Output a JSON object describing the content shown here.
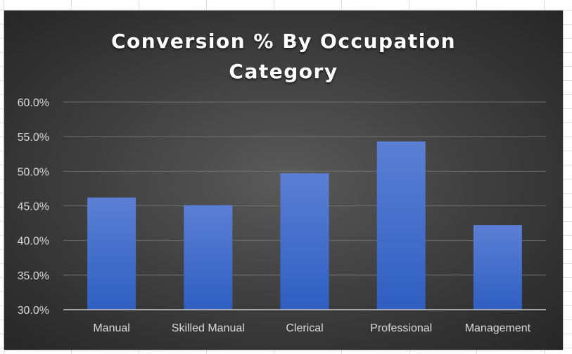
{
  "chart_data": {
    "type": "bar",
    "title": "Conversion % By Occupation Category",
    "title_lines": [
      "Conversion % By Occupation",
      "Category"
    ],
    "categories": [
      "Manual",
      "Skilled Manual",
      "Clerical",
      "Professional",
      "Management"
    ],
    "values": [
      46.2,
      45.1,
      49.7,
      54.3,
      42.2
    ],
    "ylim": [
      30.0,
      60.0
    ],
    "ytick_values": [
      30.0,
      35.0,
      40.0,
      45.0,
      50.0,
      55.0,
      60.0
    ],
    "ytick_labels": [
      "30.0%",
      "35.0%",
      "40.0%",
      "45.0%",
      "50.0%",
      "55.0%",
      "60.0%"
    ],
    "xlabel": "",
    "ylabel": "",
    "grid": true,
    "legend": "none"
  },
  "colors": {
    "bar_top": "#5b7fd4",
    "bar_bottom": "#2f5fc2",
    "gridline": "#707070",
    "axis": "#c8c8c8"
  }
}
